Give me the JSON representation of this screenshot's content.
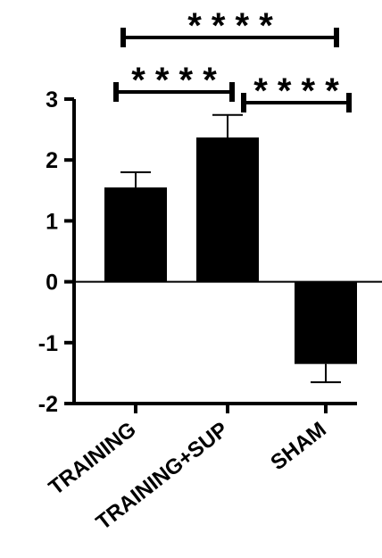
{
  "chart_data": {
    "type": "bar",
    "categories": [
      "TRAINING",
      "TRAINING+SUP",
      "SHAM"
    ],
    "values": [
      1.55,
      2.37,
      -1.35
    ],
    "errors": [
      0.25,
      0.37,
      0.3
    ],
    "ylim": [
      -2,
      3
    ],
    "yticks": [
      {
        "value": 3,
        "label": "3"
      },
      {
        "value": 2,
        "label": "2"
      },
      {
        "value": 1,
        "label": "1"
      },
      {
        "value": 0,
        "label": "0"
      },
      {
        "value": -1,
        "label": "-1"
      },
      {
        "value": -2,
        "label": "-2"
      }
    ],
    "bar_color": "#000000",
    "significance": [
      {
        "from": 0,
        "to": 2,
        "label": "* * * *"
      },
      {
        "from": 0,
        "to": 1,
        "label": "* * * *"
      },
      {
        "from": 1,
        "to": 2,
        "label": "* * * *"
      }
    ],
    "title": "",
    "xlabel": "",
    "ylabel": "",
    "grid": false,
    "legend": false
  }
}
